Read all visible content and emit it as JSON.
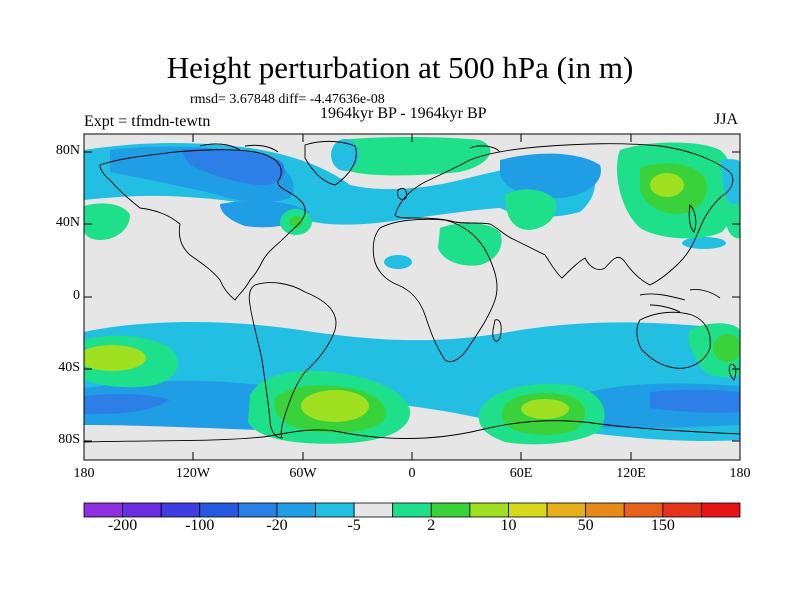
{
  "title": "Height perturbation at 500 hPa (in m)",
  "stats": "rmsd= 3.67848 diff= -4.47636e-08",
  "period": "1964kyr BP - 1964kyr BP",
  "experiment": "Expt = tfmdn-tewtn",
  "season": "JJA",
  "map": {
    "ocean_color": "#e6e6e6",
    "coast_color": "#000000",
    "lat_ticks": [
      "80N",
      "40N",
      "0",
      "40S",
      "80S"
    ],
    "lon_ticks": [
      "180",
      "120W",
      "60W",
      "0",
      "60E",
      "120E",
      "180"
    ]
  },
  "colorbar": {
    "colors": [
      "#8e2fe0",
      "#6a2ee0",
      "#3d3de0",
      "#2459e0",
      "#2b7fe6",
      "#1f9ee6",
      "#22bfe3",
      "#e6e6e6",
      "#1fe08a",
      "#3ad23a",
      "#9fe020",
      "#d8d81a",
      "#e6b01a",
      "#e68a1a",
      "#e6621a",
      "#e6341a",
      "#e61414"
    ],
    "labels": [
      "-200",
      "-100",
      "-20",
      "-5",
      "2",
      "10",
      "50",
      "150"
    ]
  }
}
